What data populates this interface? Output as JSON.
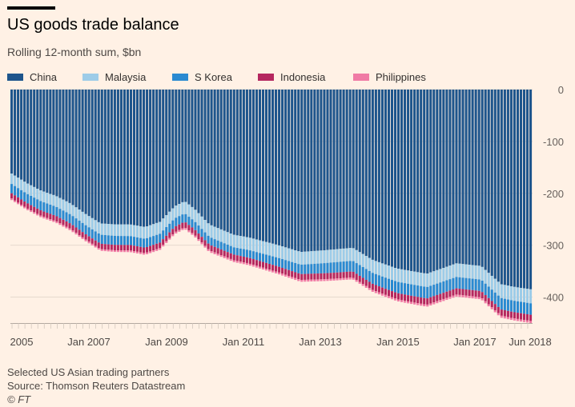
{
  "chart_data": {
    "type": "bar",
    "stacked": true,
    "title": "US goods trade balance",
    "subtitle": "Rolling 12-month sum, $bn",
    "ylim": [
      -450,
      0
    ],
    "yticks": [
      0,
      -100,
      -200,
      -300,
      -400
    ],
    "ytick_labels": [
      "0",
      "-100",
      "-200",
      "-300",
      "-400"
    ],
    "xtick_labels": [
      "2005",
      "Jan 2007",
      "Jan 2009",
      "Jan 2011",
      "Jan 2013",
      "Jan 2015",
      "Jan 2017",
      "Jun 2018"
    ],
    "x_start": "Jan 2005",
    "x_end": "Jun 2018",
    "grid": true,
    "legend_position": "top",
    "series": [
      {
        "name": "China",
        "color": "#1e558c",
        "anchors": [
          [
            0,
            -162
          ],
          [
            6,
            -180
          ],
          [
            12,
            -195
          ],
          [
            18,
            -205
          ],
          [
            24,
            -220
          ],
          [
            30,
            -240
          ],
          [
            36,
            -258
          ],
          [
            42,
            -260
          ],
          [
            48,
            -260
          ],
          [
            54,
            -265
          ],
          [
            60,
            -255
          ],
          [
            66,
            -225
          ],
          [
            70,
            -215
          ],
          [
            74,
            -230
          ],
          [
            80,
            -260
          ],
          [
            90,
            -280
          ],
          [
            96,
            -285
          ],
          [
            108,
            -300
          ],
          [
            117,
            -313
          ],
          [
            126,
            -310
          ],
          [
            138,
            -305
          ],
          [
            146,
            -328
          ],
          [
            150,
            -335
          ],
          [
            156,
            -345
          ],
          [
            162,
            -350
          ],
          [
            168,
            -355
          ],
          [
            174,
            -345
          ],
          [
            180,
            -335
          ],
          [
            190,
            -340
          ],
          [
            198,
            -375
          ],
          [
            203,
            -380
          ],
          [
            210,
            -385
          ]
        ]
      },
      {
        "name": "Malaysia",
        "color": "#9dcce8",
        "anchors": [
          [
            0,
            -20
          ],
          [
            80,
            -24
          ],
          [
            140,
            -25
          ],
          [
            210,
            -27
          ]
        ]
      },
      {
        "name": "S Korea",
        "color": "#2a8ad1",
        "anchors": [
          [
            0,
            -18
          ],
          [
            60,
            -17
          ],
          [
            90,
            -14
          ],
          [
            130,
            -20
          ],
          [
            160,
            -22
          ],
          [
            210,
            -22
          ]
        ]
      },
      {
        "name": "Indonesia",
        "color": "#b5275f",
        "anchors": [
          [
            0,
            -10
          ],
          [
            100,
            -11
          ],
          [
            160,
            -12
          ],
          [
            210,
            -12
          ]
        ]
      },
      {
        "name": "Philippines",
        "color": "#f07ba5",
        "anchors": [
          [
            0,
            -3
          ],
          [
            210,
            -4
          ]
        ]
      }
    ]
  },
  "footnotes": {
    "note": "Selected US Asian trading partners",
    "source": "Source: Thomson Reuters Datastream",
    "credit": "© FT"
  }
}
